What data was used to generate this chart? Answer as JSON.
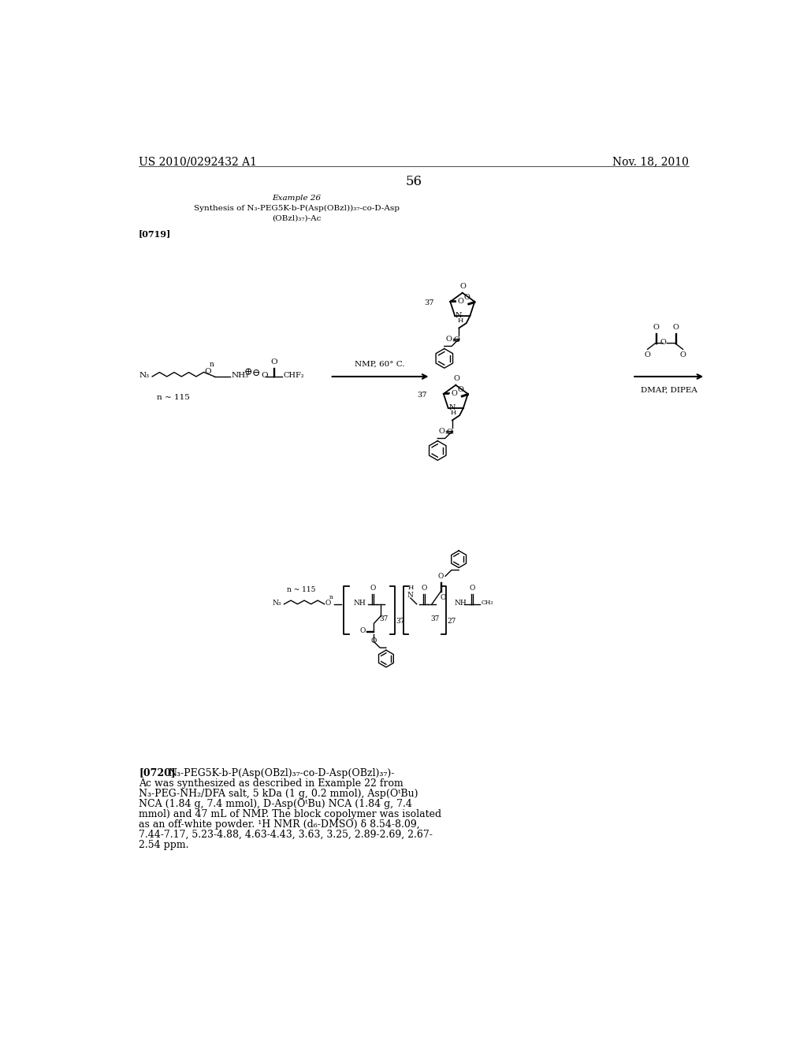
{
  "page_number": "56",
  "patent_number": "US 2010/0292432 A1",
  "patent_date": "Nov. 18, 2010",
  "example_title": "Example 26",
  "example_subtitle_line1": "Synthesis of N₃-PEG5K-b-P(Asp(OBzl))₃₇-co-D-Asp",
  "example_subtitle_line2": "(OBzl)₃₇)-Ac",
  "paragraph_tag1": "[0719]",
  "paragraph_tag2": "[0720]",
  "paragraph2_line1": "   N₃-PEG5K-b-P(Asp(OBzl)₃₇-co-D-Asp(OBzl)₃₇)-",
  "paragraph2_line2": "Ac was synthesized as described in Example 22 from",
  "paragraph2_line3": "N₃-PEG-NH₂/DFA salt, 5 kDa (1 g, 0.2 mmol), Asp(OᵗBu)",
  "paragraph2_line4": "NCA (1.84 g, 7.4 mmol), D-Asp(OᵗBu) NCA (1.84 g, 7.4",
  "paragraph2_line5": "mmol) and 47 mL of NMP. The block copolymer was isolated",
  "paragraph2_line6": "as an off-white powder. ¹H NMR (d₆-DMSO) δ 8.54-8.09,",
  "paragraph2_line7": "7.44-7.17, 5.23-4.88, 4.63-4.43, 3.63, 3.25, 2.89-2.69, 2.67-",
  "paragraph2_line8": "2.54 ppm.",
  "background_color": "#ffffff",
  "text_color": "#000000"
}
